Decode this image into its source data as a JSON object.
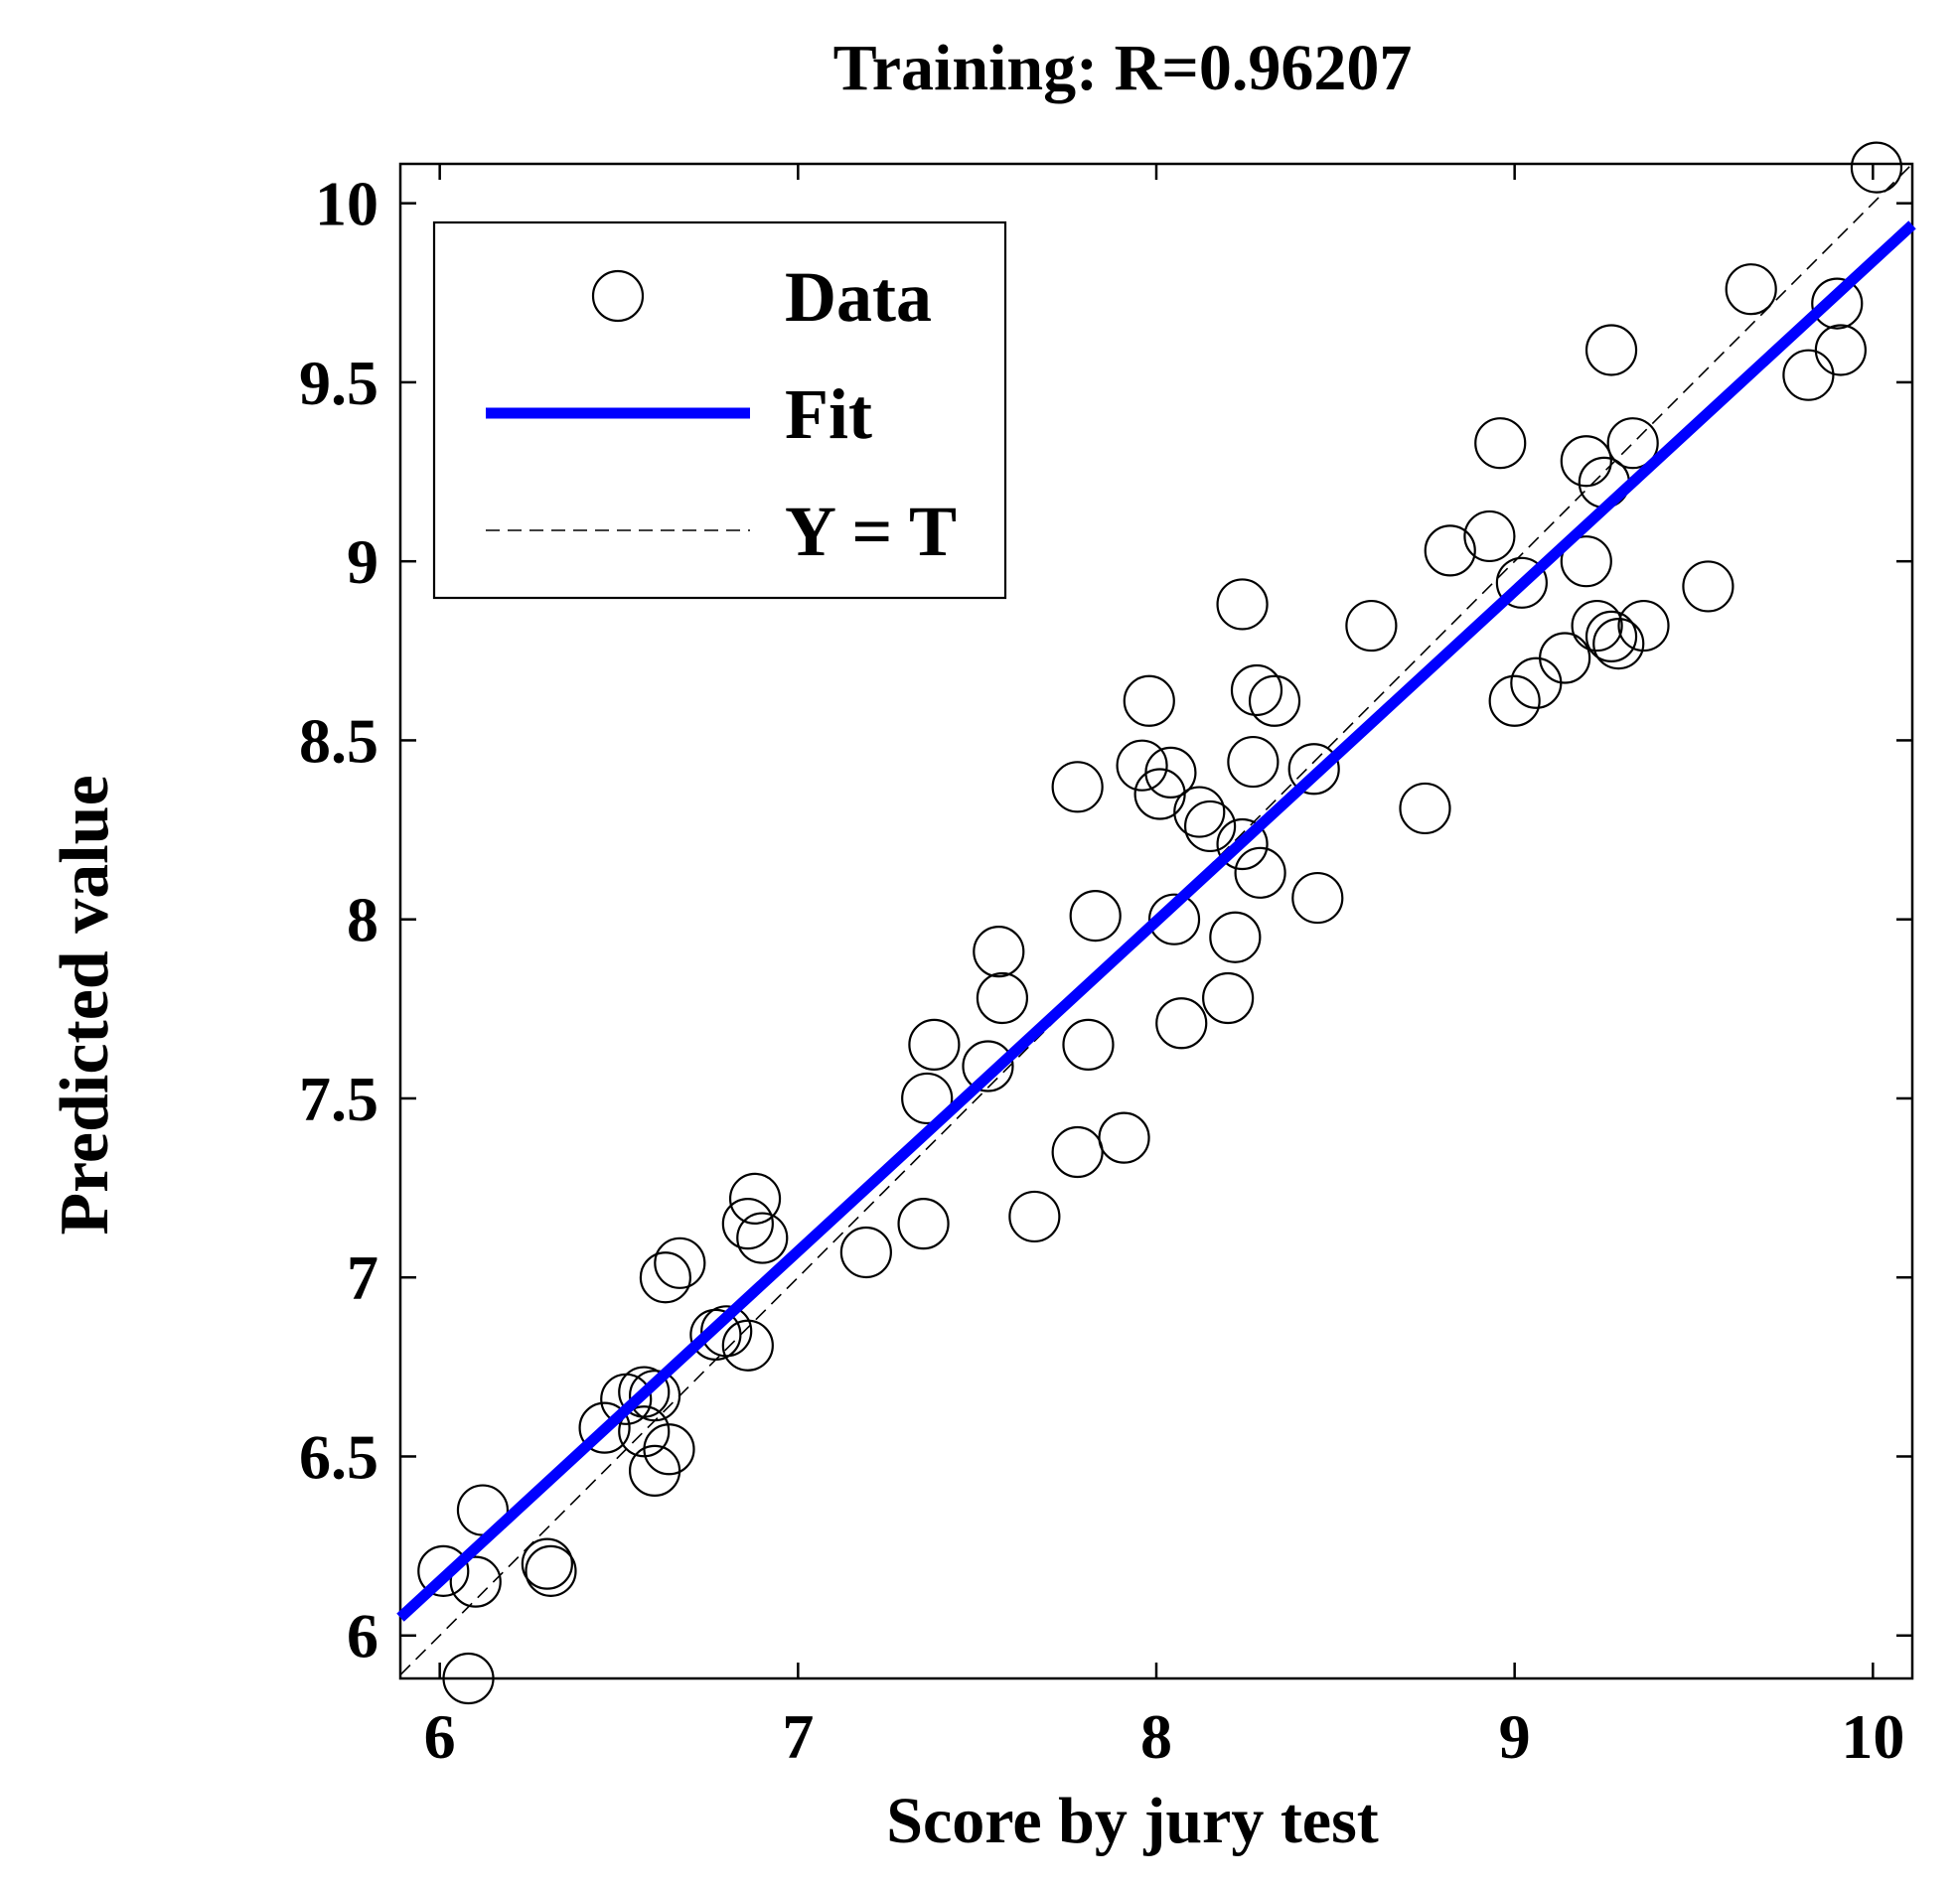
{
  "chart_data": {
    "type": "scatter",
    "title": "Training: R=0.96207",
    "xlabel": "Score by jury test",
    "ylabel": "Predicted value",
    "xlim": [
      5.89,
      10.11
    ],
    "ylim": [
      5.88,
      10.11
    ],
    "xticks": [
      6,
      7,
      8,
      9,
      10
    ],
    "yticks": [
      6,
      6.5,
      7,
      7.5,
      8,
      8.5,
      9,
      9.5,
      10
    ],
    "grid": false,
    "legend": {
      "placement": "top-left",
      "entries": [
        "Data",
        "Fit",
        "Y = T"
      ]
    },
    "colors": {
      "fit": "#0000ff",
      "data_marker": "#000000",
      "identity": "#000000"
    },
    "series": [
      {
        "name": "Data",
        "kind": "scatter",
        "points": [
          [
            6.01,
            6.18
          ],
          [
            6.08,
            5.88
          ],
          [
            6.1,
            6.15
          ],
          [
            6.12,
            6.35
          ],
          [
            6.3,
            6.2
          ],
          [
            6.31,
            6.18
          ],
          [
            6.46,
            6.58
          ],
          [
            6.52,
            6.66
          ],
          [
            6.57,
            6.68
          ],
          [
            6.57,
            6.57
          ],
          [
            6.6,
            6.67
          ],
          [
            6.6,
            6.46
          ],
          [
            6.63,
            7.0
          ],
          [
            6.64,
            6.52
          ],
          [
            6.67,
            7.04
          ],
          [
            6.77,
            6.84
          ],
          [
            6.8,
            6.85
          ],
          [
            6.86,
            6.81
          ],
          [
            6.86,
            7.15
          ],
          [
            6.88,
            7.22
          ],
          [
            6.9,
            7.11
          ],
          [
            7.19,
            7.07
          ],
          [
            7.35,
            7.15
          ],
          [
            7.36,
            7.5
          ],
          [
            7.38,
            7.65
          ],
          [
            7.53,
            7.59
          ],
          [
            7.56,
            7.91
          ],
          [
            7.57,
            7.78
          ],
          [
            7.66,
            7.17
          ],
          [
            7.78,
            7.35
          ],
          [
            7.78,
            8.37
          ],
          [
            7.81,
            7.65
          ],
          [
            7.83,
            8.01
          ],
          [
            7.91,
            7.39
          ],
          [
            7.96,
            8.43
          ],
          [
            7.98,
            8.61
          ],
          [
            8.01,
            8.35
          ],
          [
            8.04,
            8.41
          ],
          [
            8.05,
            8.0
          ],
          [
            8.07,
            7.71
          ],
          [
            8.12,
            8.3
          ],
          [
            8.15,
            8.26
          ],
          [
            8.2,
            7.78
          ],
          [
            8.22,
            7.95
          ],
          [
            8.24,
            8.21
          ],
          [
            8.24,
            8.88
          ],
          [
            8.27,
            8.44
          ],
          [
            8.28,
            8.64
          ],
          [
            8.29,
            8.13
          ],
          [
            8.33,
            8.61
          ],
          [
            8.44,
            8.42
          ],
          [
            8.45,
            8.06
          ],
          [
            8.6,
            8.82
          ],
          [
            8.75,
            8.31
          ],
          [
            8.82,
            9.03
          ],
          [
            8.93,
            9.07
          ],
          [
            8.96,
            9.33
          ],
          [
            9.0,
            8.61
          ],
          [
            9.02,
            8.94
          ],
          [
            9.06,
            8.66
          ],
          [
            9.14,
            8.73
          ],
          [
            9.2,
            9.0
          ],
          [
            9.2,
            9.28
          ],
          [
            9.23,
            8.82
          ],
          [
            9.25,
            9.22
          ],
          [
            9.27,
            9.59
          ],
          [
            9.27,
            8.79
          ],
          [
            9.29,
            8.77
          ],
          [
            9.33,
            9.33
          ],
          [
            9.36,
            8.82
          ],
          [
            9.54,
            8.93
          ],
          [
            9.66,
            9.76
          ],
          [
            9.82,
            9.52
          ],
          [
            9.9,
            9.72
          ],
          [
            9.91,
            9.59
          ],
          [
            10.01,
            10.1
          ]
        ]
      },
      {
        "name": "Fit",
        "kind": "line",
        "points": [
          [
            5.89,
            6.05
          ],
          [
            10.11,
            9.94
          ]
        ]
      },
      {
        "name": "Y = T",
        "kind": "line",
        "points": [
          [
            5.89,
            5.89
          ],
          [
            10.11,
            10.11
          ]
        ]
      }
    ]
  }
}
